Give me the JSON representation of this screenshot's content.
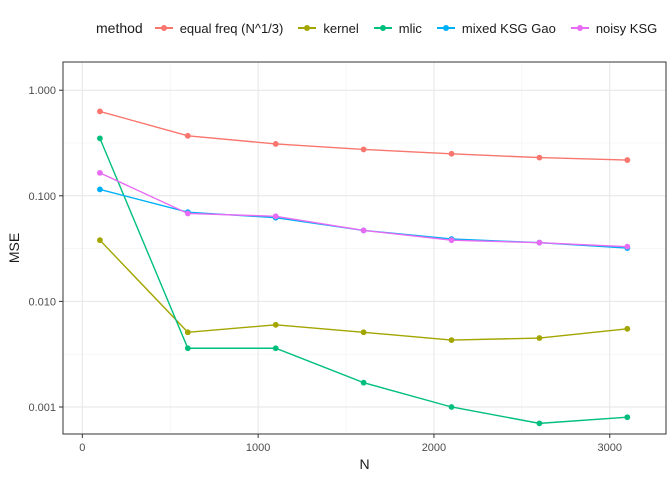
{
  "chart_data": {
    "type": "line",
    "xlabel": "N",
    "ylabel": "MSE",
    "xscale": "linear",
    "yscale": "log",
    "xlim": [
      -110,
      3320
    ],
    "ylim": [
      0.000555,
      1.85
    ],
    "xticks": [
      0,
      1000,
      2000,
      3000
    ],
    "xtick_labels": [
      "0",
      "1000",
      "2000",
      "3000"
    ],
    "yticks": [
      0.001,
      0.01,
      0.1,
      1.0
    ],
    "ytick_labels": [
      "0.001",
      "0.010",
      "0.100",
      "1.000"
    ],
    "grid": true,
    "legend": {
      "title": "method",
      "position": "top"
    },
    "x": [
      100,
      600,
      1100,
      1600,
      2100,
      2600,
      3100
    ],
    "series": [
      {
        "name": "equal freq (N^1/3)",
        "color": "#F8766D",
        "values": [
          0.63,
          0.37,
          0.31,
          0.275,
          0.25,
          0.23,
          0.218
        ]
      },
      {
        "name": "kernel",
        "color": "#A3A500",
        "values": [
          0.038,
          0.0051,
          0.006,
          0.0051,
          0.0043,
          0.0045,
          0.0055
        ]
      },
      {
        "name": "mlic",
        "color": "#00BF7D",
        "values": [
          0.35,
          0.0036,
          0.0036,
          0.0017,
          0.001,
          0.0007,
          0.0008
        ]
      },
      {
        "name": "mixed KSG Gao",
        "color": "#00B0F6",
        "values": [
          0.115,
          0.07,
          0.062,
          0.047,
          0.039,
          0.036,
          0.032
        ]
      },
      {
        "name": "noisy KSG",
        "color": "#E76BF3",
        "values": [
          0.165,
          0.068,
          0.064,
          0.047,
          0.038,
          0.036,
          0.033
        ]
      }
    ]
  }
}
